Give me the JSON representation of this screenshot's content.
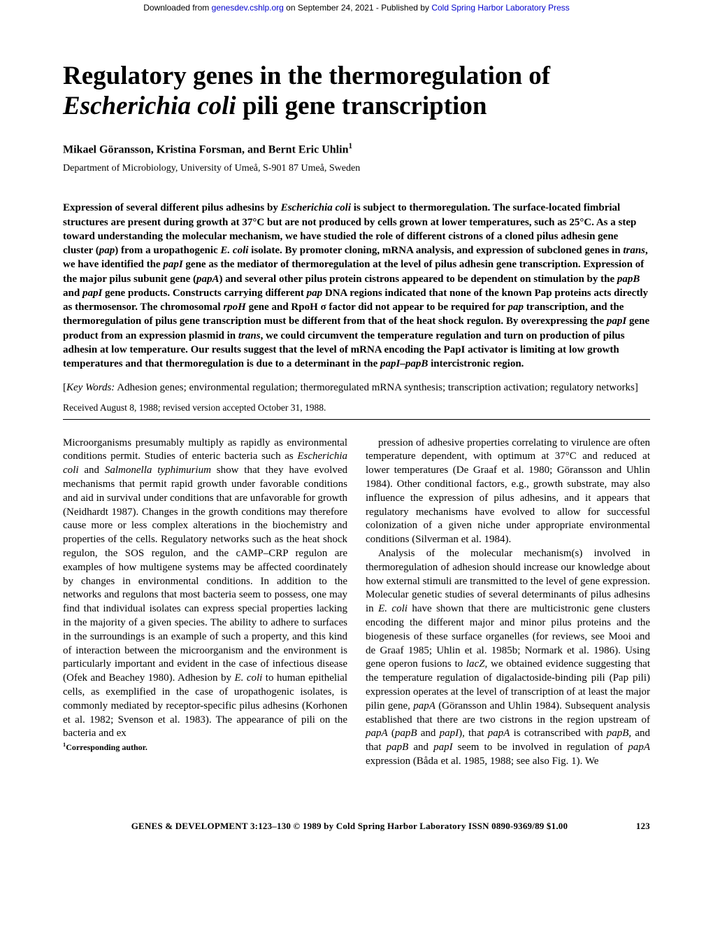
{
  "download_bar": {
    "prefix": "Downloaded from ",
    "link1_text": "genesdev.cshlp.org",
    "mid": " on September 24, 2021 - Published by ",
    "link2_text": "Cold Spring Harbor Laboratory Press"
  },
  "title_html": "Regulatory genes in the thermoregulation of <em>Escherichia coli</em> pili gene transcription",
  "authors": "Mikael Göransson, Kristina Forsman, and Bernt Eric Uhlin",
  "author_sup": "1",
  "affiliation": "Department of Microbiology, University of Umeå, S-901 87 Umeå, Sweden",
  "abstract_html": "Expression of several different pilus adhesins by <em>Escherichia coli</em> is subject to thermoregulation. The surface-located fimbrial structures are present during growth at 37°C but are not produced by cells grown at lower temperatures, such as 25°C. As a step toward understanding the molecular mechanism, we have studied the role of different cistrons of a cloned pilus adhesin gene cluster (<em>pap</em>) from a uropathogenic <em>E. coli</em> isolate. By promoter cloning, mRNA analysis, and expression of subcloned genes in <em>trans</em>, we have identified the <em>papI</em> gene as the mediator of thermoregulation at the level of pilus adhesin gene transcription. Expression of the major pilus subunit gene (<em>papA</em>) and several other pilus protein cistrons appeared to be dependent on stimulation by the <em>papB</em> and <em>papI</em> gene products. Constructs carrying different <em>pap</em> DNA regions indicated that none of the known Pap proteins acts directly as thermosensor. The chromosomal <em>rpoH</em> gene and RpoH σ factor did not appear to be required for <em>pap</em> transcription, and the thermoregulation of pilus gene transcription must be different from that of the heat shock regulon. By overexpressing the <em>papI</em> gene product from an expression plasmid in <em>trans</em>, we could circumvent the temperature regulation and turn on production of pilus adhesin at low temperature. Our results suggest that the level of mRNA encoding the PapI activator is limiting at low growth temperatures and that thermoregulation is due to a determinant in the <em>papI–papB</em> intercistronic region.",
  "keywords_html": "[<em>Key Words:</em> Adhesion genes; environmental regulation; thermoregulated mRNA synthesis; transcription activation; regulatory networks]",
  "received": "Received August 8, 1988; revised version accepted October 31, 1988.",
  "body": {
    "p1_html": "Microorganisms presumably multiply as rapidly as environmental conditions permit. Studies of enteric bacteria such as <em>Escherichia coli</em> and <em>Salmonella typhimurium</em> show that they have evolved mechanisms that permit rapid growth under favorable conditions and aid in survival under conditions that are unfavorable for growth (Neidhardt 1987). Changes in the growth conditions may therefore cause more or less complex alterations in the biochemistry and properties of the cells. Regulatory networks such as the heat shock regulon, the SOS regulon, and the cAMP–CRP regulon are examples of how multigene systems may be affected coordinately by changes in environmental conditions. In addition to the networks and regulons that most bacteria seem to possess, one may find that individual isolates can express special properties lacking in the majority of a given species. The ability to adhere to surfaces in the surroundings is an example of such a property, and this kind of interaction between the microorganism and the environment is particularly important and evident in the case of infectious disease (Ofek and Beachey 1980). Adhesion by <em>E. coli</em> to human epithelial cells, as exemplified in the case of uropathogenic isolates, is commonly mediated by receptor-specific pilus adhesins (Korhonen et al. 1982; Svenson et al. 1983). The appearance of pili on the bacteria and ex",
    "p1b_html": "pression of adhesive properties correlating to virulence are often temperature dependent, with optimum at 37°C and reduced at lower temperatures (De Graaf et al. 1980; Göransson and Uhlin 1984). Other conditional factors, e.g., growth substrate, may also influence the expression of pilus adhesins, and it appears that regulatory mechanisms have evolved to allow for successful colonization of a given niche under appropriate environmental conditions (Silverman et al. 1984).",
    "p2_html": "Analysis of the molecular mechanism(s) involved in thermoregulation of adhesion should increase our knowledge about how external stimuli are transmitted to the level of gene expression. Molecular genetic studies of several determinants of pilus adhesins in <em>E. coli</em> have shown that there are multicistronic gene clusters encoding the different major and minor pilus proteins and the biogenesis of these surface organelles (for reviews, see Mooi and de Graaf 1985; Uhlin et al. 1985b; Normark et al. 1986). Using gene operon fusions to <em>lacZ</em>, we obtained evidence suggesting that the temperature regulation of digalactoside-binding pili (Pap pili) expression operates at the level of transcription of at least the major pilin gene, <em>papA</em> (Göransson and Uhlin 1984). Subsequent analysis established that there are two cistrons in the region upstream of <em>papA</em> (<em>papB</em> and <em>papI</em>), that <em>papA</em> is cotranscribed with <em>papB</em>, and that <em>papB</em> and <em>papI</em> seem to be involved in regulation of <em>papA</em> expression (Båda et al. 1985, 1988; see also Fig. 1). We"
  },
  "corresponding_sup": "1",
  "corresponding": "Corresponding author.",
  "footer": {
    "citation": "GENES & DEVELOPMENT 3:123–130 © 1989 by Cold Spring Harbor Laboratory ISSN 0890-9369/89 $1.00",
    "pagenum": "123"
  }
}
